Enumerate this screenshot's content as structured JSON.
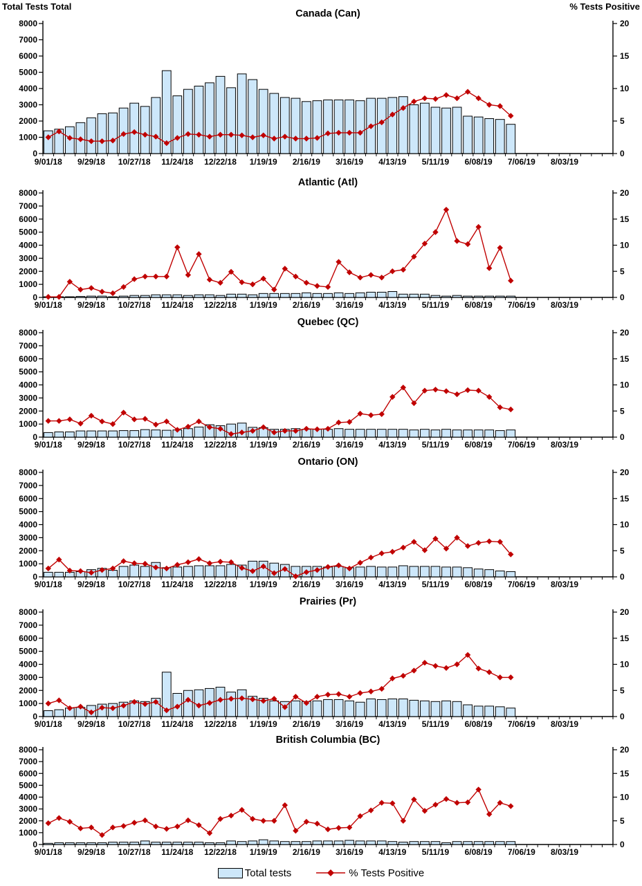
{
  "legend": {
    "items": [
      {
        "label": "Total tests",
        "type": "bar"
      },
      {
        "label": "% Tests Positive",
        "type": "line"
      }
    ]
  },
  "colors": {
    "background": "#FFFFFF",
    "bar_fill": "#CDE7FA",
    "bar_stroke": "#000000",
    "line": "#C00000",
    "text": "#000000"
  },
  "chart_data": {
    "type": "bar",
    "subtype": "combo-bar-line-weekly",
    "categories": [
      "9/01/18",
      "9/08/18",
      "9/15/18",
      "9/22/18",
      "9/29/18",
      "10/06/18",
      "10/13/18",
      "10/20/18",
      "10/27/18",
      "11/03/18",
      "11/10/18",
      "11/17/18",
      "11/24/18",
      "12/01/18",
      "12/08/18",
      "12/15/18",
      "12/22/18",
      "12/29/18",
      "1/05/19",
      "1/12/19",
      "1/19/19",
      "1/26/19",
      "2/02/19",
      "2/09/19",
      "2/16/19",
      "2/23/19",
      "3/02/19",
      "3/09/19",
      "3/16/19",
      "3/23/19",
      "3/30/19",
      "4/06/19",
      "4/13/19",
      "4/20/19",
      "4/27/19",
      "5/04/19",
      "5/11/19",
      "5/18/19",
      "5/25/19",
      "6/01/19",
      "6/08/19",
      "6/15/19",
      "6/22/19",
      "6/29/19"
    ],
    "x_axis": {
      "labels": [
        "9/01/18",
        "9/29/18",
        "10/27/18",
        "11/24/18",
        "12/22/18",
        "1/19/19",
        "2/16/19",
        "3/16/19",
        "4/13/19",
        "5/11/19",
        "6/08/19",
        "7/06/19",
        "8/03/19"
      ],
      "label_every_n_weeks": 4,
      "total_weeks": 53
    },
    "y_left": {
      "title": "Total Tests Total",
      "max": 8000,
      "min": 0,
      "ticks": [
        0,
        1000,
        2000,
        3000,
        4000,
        5000,
        6000,
        7000,
        8000
      ]
    },
    "y_right": {
      "title": "% Tests Positive",
      "max": 20,
      "min": 0,
      "ticks": [
        0,
        5,
        10,
        15,
        20
      ]
    },
    "grid": false,
    "legend_position": "bottom",
    "panels": [
      {
        "key": "canada",
        "title": "Canada (Can)",
        "total_tests": [
          1400,
          1500,
          1650,
          1900,
          2200,
          2450,
          2500,
          2800,
          3100,
          2900,
          3450,
          5100,
          3550,
          3950,
          4150,
          4350,
          4750,
          4050,
          4900,
          4550,
          3950,
          3700,
          3450,
          3400,
          3200,
          3250,
          3300,
          3300,
          3300,
          3250,
          3400,
          3400,
          3450,
          3500,
          3000,
          3100,
          2850,
          2800,
          2850,
          2300,
          2250,
          2150,
          2100,
          1800
        ],
        "pct_positive": [
          2.5,
          3.4,
          2.4,
          2.2,
          1.9,
          1.9,
          2.0,
          3.0,
          3.3,
          2.9,
          2.6,
          1.6,
          2.4,
          3.0,
          2.9,
          2.6,
          2.9,
          2.9,
          2.8,
          2.5,
          2.8,
          2.3,
          2.6,
          2.3,
          2.3,
          2.4,
          3.1,
          3.2,
          3.2,
          3.2,
          4.2,
          4.8,
          6.0,
          7.0,
          8.0,
          8.5,
          8.4,
          9.0,
          8.5,
          9.5,
          8.5,
          7.5,
          7.3,
          5.8
        ]
      },
      {
        "key": "atlantic",
        "title": "Atlantic (Atl)",
        "total_tests": [
          50,
          50,
          50,
          75,
          100,
          100,
          50,
          100,
          150,
          150,
          200,
          200,
          200,
          150,
          200,
          200,
          150,
          250,
          250,
          200,
          300,
          300,
          300,
          300,
          350,
          300,
          300,
          350,
          300,
          350,
          400,
          400,
          450,
          250,
          250,
          250,
          150,
          100,
          150,
          100,
          100,
          100,
          100,
          100
        ],
        "pct_positive": [
          0.1,
          0.1,
          3.0,
          1.5,
          1.8,
          1.1,
          0.8,
          2.0,
          3.5,
          4.0,
          4.0,
          4.0,
          9.6,
          4.3,
          8.3,
          3.4,
          2.8,
          4.9,
          2.9,
          2.5,
          3.6,
          1.5,
          5.5,
          4.0,
          2.8,
          2.2,
          2.0,
          6.8,
          4.8,
          3.8,
          4.3,
          3.8,
          5.0,
          5.3,
          7.8,
          10.3,
          12.5,
          16.8,
          10.8,
          10.2,
          13.5,
          5.6,
          9.5,
          3.2
        ]
      },
      {
        "key": "quebec",
        "title": "Quebec (QC)",
        "total_tests": [
          350,
          400,
          400,
          475,
          475,
          475,
          475,
          500,
          500,
          575,
          550,
          525,
          550,
          650,
          775,
          950,
          875,
          1000,
          1075,
          750,
          725,
          600,
          600,
          650,
          600,
          600,
          600,
          650,
          600,
          600,
          600,
          600,
          600,
          600,
          550,
          600,
          550,
          600,
          550,
          550,
          550,
          550,
          500,
          550
        ],
        "pct_positive": [
          3.1,
          3.1,
          3.4,
          2.6,
          4.1,
          3.0,
          2.5,
          4.7,
          3.4,
          3.5,
          2.4,
          3.0,
          1.4,
          2.0,
          3.0,
          1.9,
          1.6,
          0.6,
          0.9,
          1.2,
          1.9,
          0.9,
          1.2,
          1.2,
          1.6,
          1.5,
          1.6,
          2.8,
          2.9,
          4.5,
          4.2,
          4.4,
          7.7,
          9.5,
          6.5,
          8.9,
          9.1,
          8.8,
          8.2,
          9.0,
          8.9,
          7.7,
          5.7,
          5.3
        ]
      },
      {
        "key": "ontario",
        "title": "Ontario (ON)",
        "total_tests": [
          350,
          350,
          350,
          400,
          550,
          650,
          500,
          800,
          900,
          800,
          1100,
          700,
          750,
          800,
          850,
          850,
          850,
          950,
          900,
          1200,
          1200,
          1050,
          950,
          800,
          800,
          800,
          750,
          800,
          700,
          750,
          800,
          750,
          750,
          850,
          800,
          800,
          800,
          750,
          750,
          700,
          600,
          550,
          450,
          400
        ],
        "pct_positive": [
          1.6,
          3.3,
          1.2,
          1.1,
          0.8,
          1.3,
          1.6,
          3.0,
          2.6,
          2.5,
          1.8,
          1.6,
          2.3,
          2.8,
          3.4,
          2.6,
          2.9,
          2.8,
          1.7,
          1.1,
          2.0,
          0.7,
          1.5,
          0.1,
          0.9,
          1.3,
          1.9,
          2.2,
          1.6,
          2.7,
          3.7,
          4.5,
          4.8,
          5.6,
          6.7,
          5.1,
          7.3,
          5.4,
          7.5,
          5.9,
          6.5,
          6.8,
          6.7,
          4.3
        ]
      },
      {
        "key": "prairies",
        "title": "Prairies (Pr)",
        "total_tests": [
          450,
          525,
          650,
          700,
          850,
          950,
          1000,
          1100,
          1200,
          1150,
          1400,
          3400,
          1775,
          2000,
          2050,
          2150,
          2250,
          1875,
          2050,
          1550,
          1400,
          1200,
          1150,
          1200,
          1150,
          1200,
          1300,
          1300,
          1200,
          1100,
          1350,
          1300,
          1350,
          1350,
          1250,
          1200,
          1150,
          1200,
          1150,
          900,
          800,
          800,
          750,
          650
        ],
        "pct_positive": [
          2.5,
          3.1,
          1.6,
          1.9,
          0.8,
          1.7,
          1.6,
          2.1,
          2.8,
          2.4,
          2.8,
          1.2,
          1.9,
          3.2,
          2.1,
          2.6,
          3.2,
          3.4,
          3.5,
          3.3,
          3.0,
          3.4,
          1.8,
          3.8,
          2.6,
          3.8,
          4.2,
          4.3,
          3.8,
          4.5,
          4.8,
          5.3,
          7.3,
          7.8,
          8.8,
          10.3,
          9.7,
          9.3,
          10.0,
          11.8,
          9.2,
          8.5,
          7.5,
          7.5
        ]
      },
      {
        "key": "british-columbia",
        "title": "British Columbia (BC)",
        "total_tests": [
          100,
          150,
          150,
          150,
          150,
          150,
          200,
          200,
          200,
          300,
          200,
          200,
          200,
          200,
          200,
          150,
          150,
          300,
          250,
          300,
          400,
          300,
          250,
          250,
          250,
          300,
          300,
          300,
          350,
          300,
          300,
          300,
          250,
          200,
          250,
          250,
          250,
          150,
          250,
          250,
          250,
          250,
          250,
          250
        ],
        "pct_positive": [
          4.5,
          5.6,
          4.8,
          3.4,
          3.6,
          2.0,
          3.6,
          3.9,
          4.6,
          5.1,
          3.8,
          3.3,
          3.8,
          5.1,
          4.1,
          2.4,
          5.4,
          6.1,
          7.3,
          5.4,
          5.0,
          5.0,
          8.3,
          2.9,
          4.8,
          4.4,
          3.2,
          3.5,
          3.6,
          6.0,
          7.2,
          8.8,
          8.7,
          5.0,
          9.5,
          7.1,
          8.4,
          9.6,
          8.8,
          8.9,
          11.6,
          6.4,
          8.8,
          8.1
        ]
      }
    ]
  }
}
